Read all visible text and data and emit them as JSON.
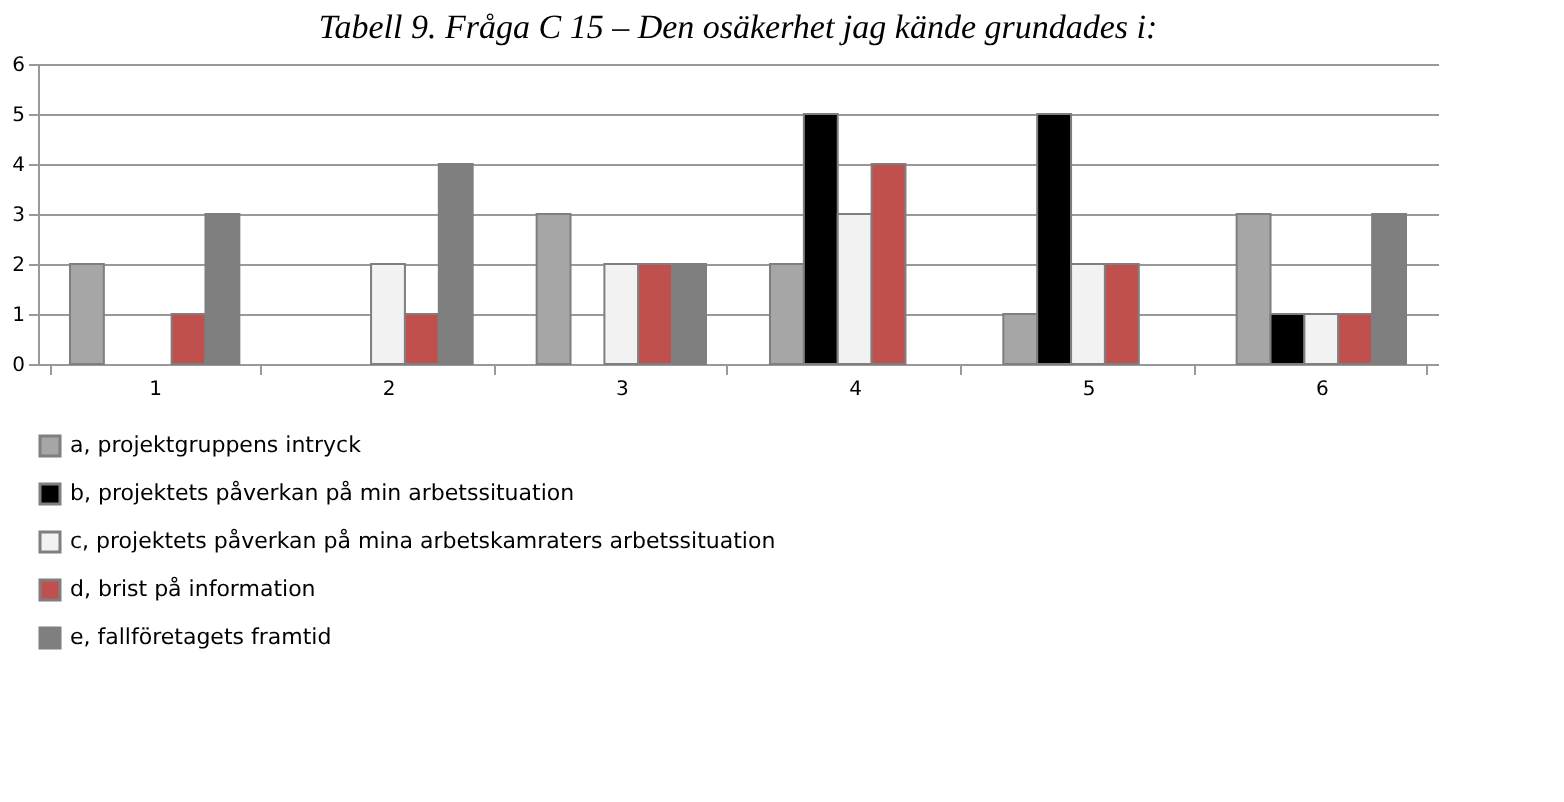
{
  "chart_data": {
    "type": "bar",
    "title": "Tabell 9. Fråga C 15 – Den osäkerhet jag kände grundades i:",
    "categories": [
      "1",
      "2",
      "3",
      "4",
      "5",
      "6"
    ],
    "series": [
      {
        "name": "a, projektgruppens intryck",
        "color": "#a6a6a6",
        "values": [
          2,
          0,
          3,
          2,
          1,
          3
        ]
      },
      {
        "name": "b, projektets påverkan på min arbetssituation",
        "color": "#000000",
        "values": [
          0,
          0,
          0,
          5,
          5,
          1
        ]
      },
      {
        "name": "c, projektets påverkan på mina arbetskamraters arbetssituation",
        "color": "#f2f2f2",
        "values": [
          0,
          2,
          2,
          3,
          2,
          1
        ]
      },
      {
        "name": "d, brist på information",
        "color": "#c0504d",
        "values": [
          1,
          1,
          2,
          4,
          2,
          1
        ]
      },
      {
        "name": "e, fallföretagets framtid",
        "color": "#7f7f7f",
        "values": [
          3,
          4,
          2,
          0,
          0,
          3
        ]
      }
    ],
    "ylim": [
      0,
      6
    ],
    "yticks": [
      0,
      1,
      2,
      3,
      4,
      5,
      6
    ],
    "grid": "y",
    "legend": "bottom"
  }
}
